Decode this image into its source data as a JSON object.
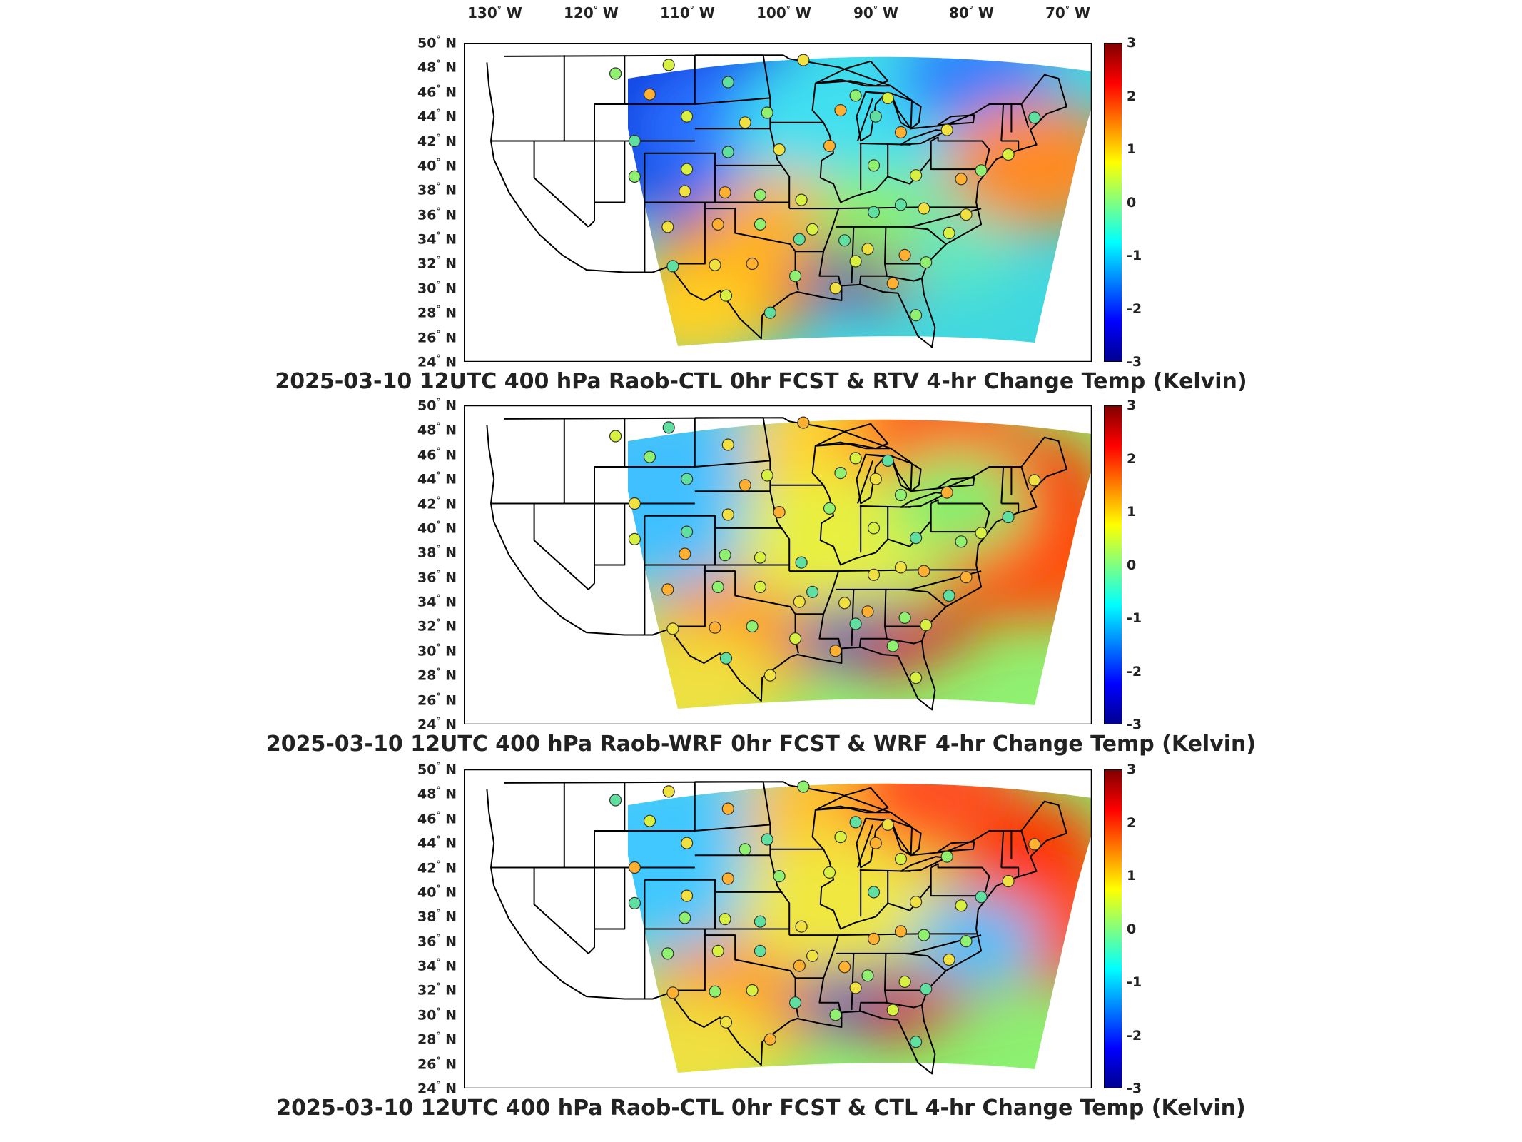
{
  "lon_labels": [
    "130",
    "120",
    "110",
    "100",
    "90",
    "80",
    "70"
  ],
  "lon_suffix": "W",
  "lat_labels": [
    "50",
    "48",
    "46",
    "44",
    "42",
    "40",
    "38",
    "36",
    "34",
    "32",
    "30",
    "28",
    "26",
    "24"
  ],
  "lat_suffix": "N",
  "panels": [
    {
      "title": "2025-03-10 12UTC 400 hPa Raob-CTL 0hr FCST & RTV 4-hr Change Temp (Kelvin)"
    },
    {
      "title": "2025-03-10 12UTC 400 hPa Raob-WRF 0hr FCST & WRF 4-hr Change Temp (Kelvin)"
    },
    {
      "title": "2025-03-10 12UTC 400 hPa Raob-CTL 0hr FCST & CTL 4-hr Change Temp (Kelvin)"
    }
  ],
  "colorbar": {
    "ticks": [
      "3",
      "2",
      "1",
      "0",
      "-1",
      "-2",
      "-3"
    ],
    "range": [
      -3,
      3
    ],
    "colors": [
      "#00008f",
      "#0000ff",
      "#0080ff",
      "#00ffff",
      "#80ff80",
      "#ffff00",
      "#ff8000",
      "#ff0000",
      "#800000"
    ]
  },
  "colors": {
    "border": "#000000",
    "background": "#ffffff"
  }
}
